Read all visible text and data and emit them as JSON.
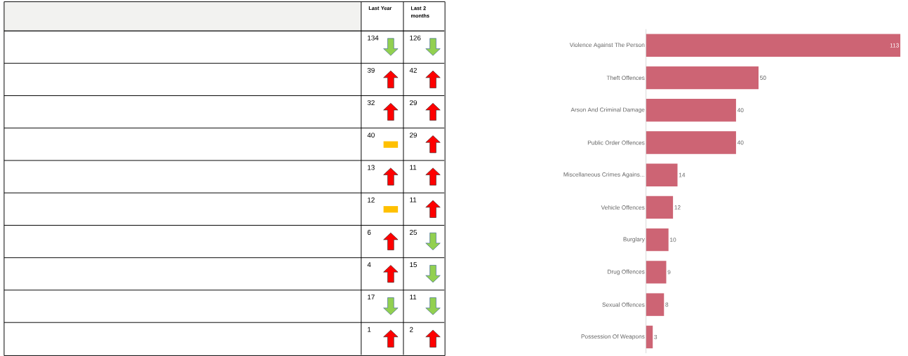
{
  "chart_data": [
    {
      "type": "bar",
      "orientation": "horizontal",
      "categories": [
        "Violence Against The Person",
        "Theft Offences",
        "Arson And Criminal Damage",
        "Public Order Offences",
        "Miscellaneous Crimes Agains...",
        "Vehicle Offences",
        "Burglary",
        "Drug Offences",
        "Sexual Offences",
        "Possession Of Weapons"
      ],
      "values": [
        113,
        50,
        40,
        40,
        14,
        12,
        10,
        9,
        8,
        3
      ],
      "color": "#cd6474",
      "data_labels": true
    },
    {
      "type": "other",
      "title": "Last Year",
      "values": [
        134,
        39,
        32,
        40,
        13,
        12,
        6,
        4,
        17,
        1
      ],
      "colors": [
        "#92d050",
        "#ff0000",
        "#ff0000",
        "#ffc000",
        "#ff0000",
        "#ffc000",
        "#ff0000",
        "#ff0000",
        "#92d050",
        "#ff0000"
      ],
      "data_labels": true
    },
    {
      "type": "other",
      "title": "Last 2 months",
      "values": [
        126,
        42,
        29,
        29,
        11,
        11,
        25,
        15,
        11,
        2
      ],
      "colors": [
        "#92d050",
        "#ff0000",
        "#ff0000",
        "#ff0000",
        "#ff0000",
        "#ff0000",
        "#92d050",
        "#92d050",
        "#92d050",
        "#ff0000"
      ],
      "data_labels": true
    }
  ]
}
